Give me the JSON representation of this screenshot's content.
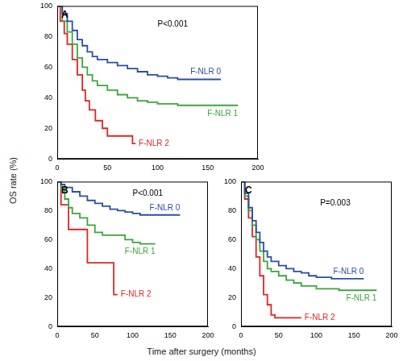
{
  "figure": {
    "y_label": "OS rate (%)",
    "x_label": "Time after surgery (months)"
  },
  "chart_data": [
    {
      "type": "line",
      "title": "A",
      "xlim": [
        0,
        200
      ],
      "xticks": [
        0,
        50,
        100,
        150,
        200
      ],
      "ylim": [
        0,
        100
      ],
      "yticks": [
        0,
        20,
        40,
        60,
        80,
        100
      ],
      "grid": false,
      "line_style": "solid",
      "marker": "none",
      "annotations": [
        {
          "text": "P<0.001",
          "x": 100,
          "y": 88
        }
      ],
      "series": [
        {
          "name": "F-NLR 0",
          "color": "#2b4ea2",
          "x": [
            0,
            5,
            10,
            15,
            20,
            25,
            30,
            35,
            40,
            50,
            60,
            70,
            80,
            90,
            100,
            110,
            120,
            163
          ],
          "values": [
            100,
            95,
            90,
            84,
            78,
            74,
            70,
            67,
            65,
            63,
            61,
            59,
            57,
            55,
            54,
            53,
            52,
            52
          ]
        },
        {
          "name": "F-NLR 1",
          "color": "#3aa63a",
          "x": [
            0,
            5,
            10,
            15,
            20,
            25,
            30,
            35,
            40,
            50,
            60,
            70,
            80,
            90,
            100,
            120,
            180
          ],
          "values": [
            100,
            90,
            83,
            75,
            66,
            60,
            55,
            51,
            48,
            45,
            42,
            40,
            38,
            37,
            36,
            35,
            35
          ]
        },
        {
          "name": "F-NLR 2",
          "color": "#e02424",
          "x": [
            0,
            3,
            7,
            10,
            15,
            20,
            25,
            28,
            32,
            38,
            45,
            50,
            75,
            78
          ],
          "values": [
            100,
            90,
            82,
            75,
            65,
            55,
            45,
            38,
            32,
            25,
            20,
            15,
            10,
            10
          ]
        }
      ]
    },
    {
      "type": "line",
      "title": "B",
      "xlim": [
        0,
        200
      ],
      "xticks": [
        0,
        50,
        100,
        150,
        200
      ],
      "ylim": [
        0,
        100
      ],
      "yticks": [
        0,
        20,
        40,
        60,
        80,
        100
      ],
      "grid": false,
      "line_style": "solid",
      "marker": "none",
      "annotations": [
        {
          "text": "P<0.001",
          "x": 100,
          "y": 92
        }
      ],
      "series": [
        {
          "name": "F-NLR 0",
          "color": "#2b4ea2",
          "x": [
            0,
            5,
            10,
            20,
            30,
            40,
            50,
            60,
            70,
            80,
            90,
            100,
            110,
            163
          ],
          "values": [
            100,
            98,
            96,
            93,
            90,
            87,
            85,
            83,
            81,
            80,
            79,
            78,
            77,
            77
          ]
        },
        {
          "name": "F-NLR 1",
          "color": "#3aa63a",
          "x": [
            0,
            5,
            10,
            15,
            20,
            30,
            40,
            50,
            60,
            80,
            90,
            100,
            110,
            130
          ],
          "values": [
            100,
            95,
            88,
            82,
            78,
            75,
            70,
            65,
            63,
            63,
            60,
            58,
            57,
            57
          ]
        },
        {
          "name": "F-NLR 2",
          "color": "#e02424",
          "x": [
            0,
            5,
            15,
            40,
            70,
            75,
            80
          ],
          "values": [
            100,
            84,
            67,
            44,
            44,
            22,
            22
          ]
        }
      ]
    },
    {
      "type": "line",
      "title": "C",
      "xlim": [
        0,
        200
      ],
      "xticks": [
        0,
        50,
        100,
        150,
        200
      ],
      "ylim": [
        0,
        100
      ],
      "yticks": [
        0,
        20,
        40,
        60,
        80,
        100
      ],
      "grid": false,
      "line_style": "solid",
      "marker": "none",
      "annotations": [
        {
          "text": "P=0.003",
          "x": 105,
          "y": 85
        }
      ],
      "series": [
        {
          "name": "F-NLR 0",
          "color": "#2b4ea2",
          "x": [
            0,
            5,
            10,
            15,
            20,
            25,
            30,
            35,
            40,
            50,
            60,
            70,
            80,
            90,
            100,
            120,
            163
          ],
          "values": [
            100,
            92,
            82,
            73,
            65,
            58,
            52,
            48,
            45,
            42,
            40,
            38,
            37,
            35,
            34,
            33,
            33
          ]
        },
        {
          "name": "F-NLR 1",
          "color": "#3aa63a",
          "x": [
            0,
            5,
            10,
            15,
            20,
            25,
            30,
            35,
            40,
            50,
            60,
            70,
            80,
            100,
            130,
            180
          ],
          "values": [
            100,
            90,
            80,
            70,
            60,
            52,
            45,
            40,
            38,
            35,
            32,
            30,
            28,
            26,
            25,
            25
          ]
        },
        {
          "name": "F-NLR 2",
          "color": "#e02424",
          "x": [
            0,
            5,
            10,
            15,
            20,
            25,
            30,
            35,
            40,
            45,
            80
          ],
          "values": [
            100,
            88,
            75,
            62,
            48,
            35,
            22,
            15,
            8,
            6,
            6
          ]
        }
      ]
    }
  ]
}
